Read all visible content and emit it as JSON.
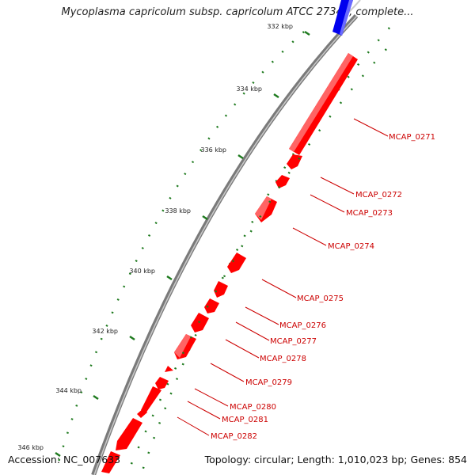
{
  "title": "Mycoplasma capricolum subsp. capricolum ATCC 27343, complete...",
  "footer": {
    "accession": "Accession: NC_007633",
    "summary": "Topology: circular; Length: 1,010,023 bp; Genes: 854"
  },
  "colors": {
    "forward_gene": "#ff0000",
    "reverse_gene": "#0000ee",
    "backbone": "#8c8c8c",
    "tick": "#1e7a1e",
    "label": "#cc0000"
  },
  "scale_ticks": [
    {
      "label": "332 kbp"
    },
    {
      "label": "334 kbp"
    },
    {
      "label": "336 kbp"
    },
    {
      "label": "338 kbp"
    },
    {
      "label": "340 kbp"
    },
    {
      "label": "342 kbp"
    },
    {
      "label": "344 kbp"
    },
    {
      "label": "346 kbp"
    }
  ],
  "genes": [
    {
      "label": "MCAP_0271"
    },
    {
      "label": "MCAP_0272"
    },
    {
      "label": "MCAP_0273"
    },
    {
      "label": "MCAP_0274"
    },
    {
      "label": "MCAP_0275"
    },
    {
      "label": "MCAP_0276"
    },
    {
      "label": "MCAP_0277"
    },
    {
      "label": "MCAP_0278"
    },
    {
      "label": "MCAP_0279"
    },
    {
      "label": "MCAP_0280"
    },
    {
      "label": "MCAP_0281"
    },
    {
      "label": "MCAP_0282"
    }
  ]
}
